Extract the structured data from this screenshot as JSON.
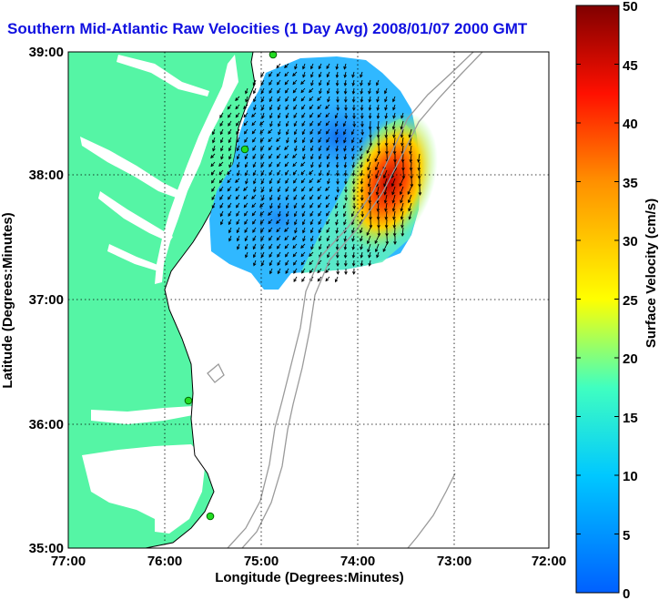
{
  "title": "Southern Mid-Atlantic Raw Velocities (1 Day Avg) 2008/01/07 2000 GMT",
  "map": {
    "xlabel": "Longitude (Degrees:Minutes)",
    "ylabel": "Latitude (Degrees:Minutes)",
    "x_ticks": [
      "77:00",
      "76:00",
      "75:00",
      "74:00",
      "73:00",
      "72:00"
    ],
    "y_ticks": [
      "39:00",
      "38:00",
      "37:00",
      "36:00",
      "35:00"
    ],
    "lon_range": [
      -77,
      -72
    ],
    "lat_range": [
      35,
      39
    ],
    "grid": "dotted",
    "land_color": "#55f5a5",
    "bathymetry_color": "#9a9a9a",
    "station_color": "#22dd22"
  },
  "colorbar": {
    "label": "Surface Velocity (cm/s)",
    "ticks": [
      "0",
      "5",
      "10",
      "15",
      "20",
      "25",
      "30",
      "35",
      "40",
      "45",
      "50"
    ],
    "range": [
      0,
      50
    ],
    "colors": [
      "#0060ff",
      "#00a0ff",
      "#00e0ff",
      "#40ffc0",
      "#a0ff60",
      "#ffff00",
      "#ffb000",
      "#ff6000",
      "#ff0000",
      "#a00000"
    ]
  }
}
